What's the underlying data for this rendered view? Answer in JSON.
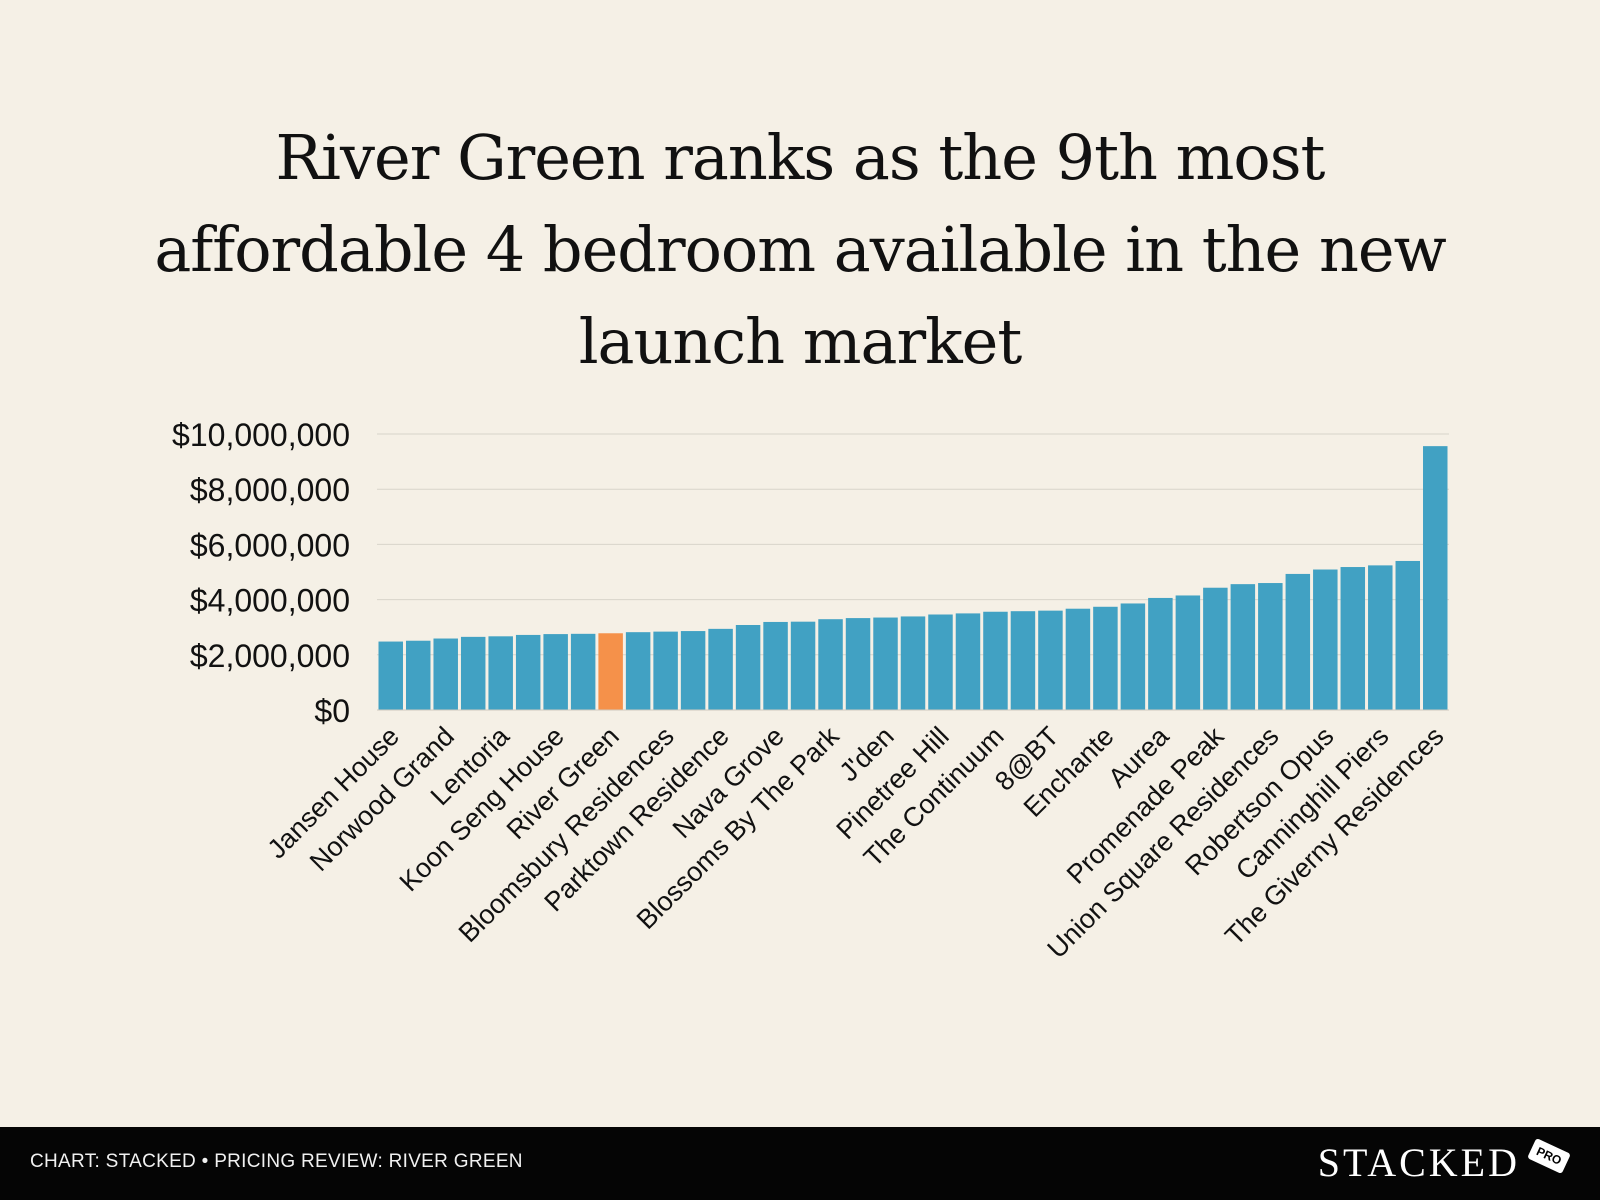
{
  "title_lines": [
    "River Green ranks as the 9th most",
    "affordable 4 bedroom available in the new",
    "launch market"
  ],
  "chart_data": {
    "type": "bar",
    "title": "River Green ranks as the 9th most affordable 4 bedroom available in the new launch market",
    "xlabel": "",
    "ylabel": "",
    "ylim": [
      0,
      10000000
    ],
    "y_ticks": [
      0,
      2000000,
      4000000,
      6000000,
      8000000,
      10000000
    ],
    "y_tick_labels": [
      "$0",
      "$2,000,000",
      "$4,000,000",
      "$6,000,000",
      "$8,000,000",
      "$10,000,000"
    ],
    "grid": true,
    "highlight_category": "River Green",
    "colors": {
      "default": "#41a1c3",
      "highlight": "#f5914a",
      "grid": "#d8d4ca"
    },
    "x_tick_labels": [
      "Jansen House",
      "Norwood Grand",
      "Lentoria",
      "Koon Seng House",
      "River Green",
      "Bloomsbury Residences",
      "Parktown Residence",
      "Nava Grove",
      "Blossoms By The Park",
      "J'den",
      "Pinetree Hill",
      "The Continuum",
      "8@BT",
      "Enchante",
      "Aurea",
      "Promenade Peak",
      "Union Square Residences",
      "Robertson Opus",
      "Canninghill Piers",
      "The Giverny Residences"
    ],
    "categories": [
      "Jansen House",
      "",
      "Norwood Grand",
      "",
      "Lentoria",
      "",
      "Koon Seng House",
      "",
      "River Green",
      "",
      "Bloomsbury Residences",
      "",
      "Parktown Residence",
      "",
      "Nava Grove",
      "",
      "Blossoms By The Park",
      "",
      "J'den",
      "",
      "Pinetree Hill",
      "",
      "The Continuum",
      "",
      "8@BT",
      "",
      "Enchante",
      "",
      "Aurea",
      "",
      "Promenade Peak",
      "",
      "Union Square Residences",
      "",
      "Robertson Opus",
      "",
      "Canninghill Piers",
      "",
      "The Giverny Residences"
    ],
    "values": [
      2480000,
      2510000,
      2590000,
      2650000,
      2670000,
      2720000,
      2750000,
      2760000,
      2780000,
      2820000,
      2840000,
      2860000,
      2940000,
      3080000,
      3190000,
      3200000,
      3290000,
      3330000,
      3350000,
      3390000,
      3460000,
      3500000,
      3560000,
      3580000,
      3600000,
      3670000,
      3740000,
      3860000,
      4060000,
      4150000,
      4430000,
      4560000,
      4600000,
      4930000,
      5090000,
      5180000,
      5240000,
      5400000,
      9560000
    ]
  },
  "footer": {
    "caption": "CHART: STACKED • PRICING REVIEW: RIVER GREEN",
    "logo": "STACKED",
    "badge": "PRO"
  }
}
